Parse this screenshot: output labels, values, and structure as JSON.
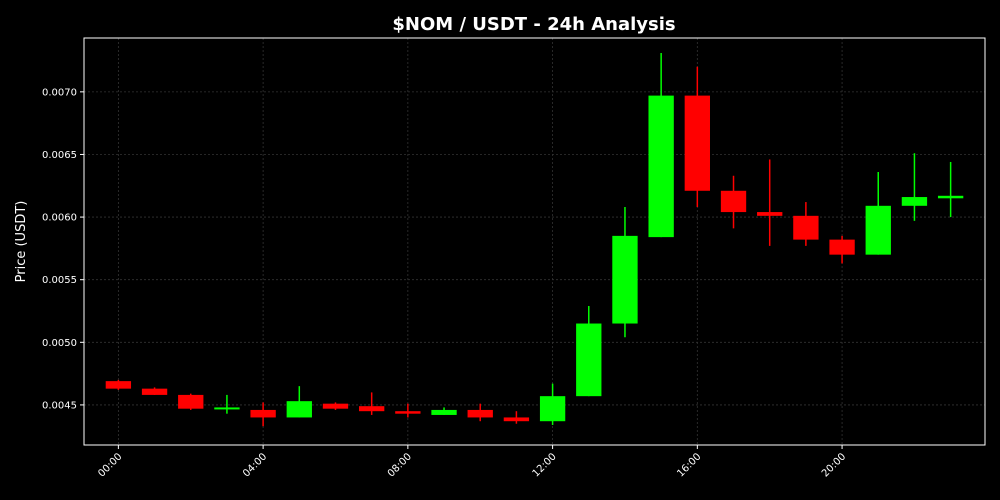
{
  "chart_data": {
    "type": "candlestick",
    "title": "$NOM / USDT - 24h Analysis",
    "xlabel": "",
    "ylabel": "Price (USDT)",
    "ylim": [
      0.00418,
      0.00743
    ],
    "xlim": [
      -0.95,
      23.95
    ],
    "grid": true,
    "background": "#000000",
    "colors": {
      "up": "#00ff00",
      "down": "#ff0000",
      "text": "#ffffff",
      "axes": "#ffffff",
      "grid": "#333333"
    },
    "x_ticks": [
      {
        "hour": 0,
        "label": "00:00"
      },
      {
        "hour": 4,
        "label": "04:00"
      },
      {
        "hour": 8,
        "label": "08:00"
      },
      {
        "hour": 12,
        "label": "12:00"
      },
      {
        "hour": 16,
        "label": "16:00"
      },
      {
        "hour": 20,
        "label": "20:00"
      }
    ],
    "y_ticks": [
      {
        "value": 0.0045,
        "label": "0.0045"
      },
      {
        "value": 0.005,
        "label": "0.0050"
      },
      {
        "value": 0.0055,
        "label": "0.0055"
      },
      {
        "value": 0.006,
        "label": "0.0060"
      },
      {
        "value": 0.0065,
        "label": "0.0065"
      },
      {
        "value": 0.007,
        "label": "0.0070"
      }
    ],
    "candles": [
      {
        "hour": 0,
        "open": 0.00469,
        "high": 0.0047,
        "low": 0.00462,
        "close": 0.00463
      },
      {
        "hour": 1,
        "open": 0.00463,
        "high": 0.00464,
        "low": 0.00458,
        "close": 0.00458
      },
      {
        "hour": 2,
        "open": 0.00458,
        "high": 0.00459,
        "low": 0.00446,
        "close": 0.00447
      },
      {
        "hour": 3,
        "open": 0.00447,
        "high": 0.00458,
        "low": 0.00443,
        "close": 0.00448
      },
      {
        "hour": 4,
        "open": 0.00446,
        "high": 0.00452,
        "low": 0.00433,
        "close": 0.0044
      },
      {
        "hour": 5,
        "open": 0.0044,
        "high": 0.00465,
        "low": 0.0044,
        "close": 0.00453
      },
      {
        "hour": 6,
        "open": 0.00451,
        "high": 0.00452,
        "low": 0.00446,
        "close": 0.00447
      },
      {
        "hour": 7,
        "open": 0.00449,
        "high": 0.0046,
        "low": 0.00442,
        "close": 0.00445
      },
      {
        "hour": 8,
        "open": 0.00445,
        "high": 0.00451,
        "low": 0.0044,
        "close": 0.00443
      },
      {
        "hour": 9,
        "open": 0.00442,
        "high": 0.00448,
        "low": 0.00442,
        "close": 0.00446
      },
      {
        "hour": 10,
        "open": 0.00446,
        "high": 0.00451,
        "low": 0.00437,
        "close": 0.0044
      },
      {
        "hour": 11,
        "open": 0.0044,
        "high": 0.00445,
        "low": 0.00435,
        "close": 0.00437
      },
      {
        "hour": 12,
        "open": 0.00437,
        "high": 0.00467,
        "low": 0.00434,
        "close": 0.00457
      },
      {
        "hour": 13,
        "open": 0.00457,
        "high": 0.00529,
        "low": 0.00457,
        "close": 0.00515
      },
      {
        "hour": 14,
        "open": 0.00515,
        "high": 0.00608,
        "low": 0.00504,
        "close": 0.00585
      },
      {
        "hour": 15,
        "open": 0.00584,
        "high": 0.00731,
        "low": 0.00584,
        "close": 0.00697
      },
      {
        "hour": 16,
        "open": 0.00697,
        "high": 0.0072,
        "low": 0.00608,
        "close": 0.00621
      },
      {
        "hour": 17,
        "open": 0.00621,
        "high": 0.00633,
        "low": 0.00591,
        "close": 0.00604
      },
      {
        "hour": 18,
        "open": 0.00604,
        "high": 0.00646,
        "low": 0.00577,
        "close": 0.00601
      },
      {
        "hour": 19,
        "open": 0.00601,
        "high": 0.00612,
        "low": 0.00577,
        "close": 0.00582
      },
      {
        "hour": 20,
        "open": 0.00582,
        "high": 0.00585,
        "low": 0.00563,
        "close": 0.0057
      },
      {
        "hour": 21,
        "open": 0.0057,
        "high": 0.00636,
        "low": 0.0057,
        "close": 0.00609
      },
      {
        "hour": 22,
        "open": 0.00609,
        "high": 0.00651,
        "low": 0.00597,
        "close": 0.00616
      },
      {
        "hour": 23,
        "open": 0.00615,
        "high": 0.00644,
        "low": 0.006,
        "close": 0.00617
      }
    ]
  }
}
